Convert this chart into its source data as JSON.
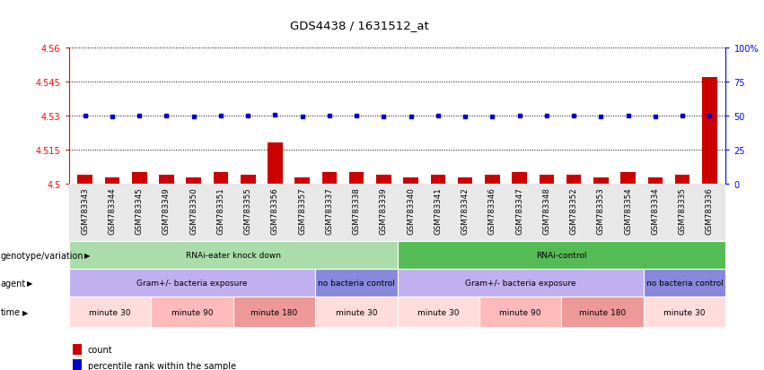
{
  "title": "GDS4438 / 1631512_at",
  "samples": [
    "GSM783343",
    "GSM783344",
    "GSM783345",
    "GSM783349",
    "GSM783350",
    "GSM783351",
    "GSM783355",
    "GSM783356",
    "GSM783357",
    "GSM783337",
    "GSM783338",
    "GSM783339",
    "GSM783340",
    "GSM783341",
    "GSM783342",
    "GSM783346",
    "GSM783347",
    "GSM783348",
    "GSM783352",
    "GSM783353",
    "GSM783354",
    "GSM783334",
    "GSM783335",
    "GSM783336"
  ],
  "bar_values": [
    4.504,
    4.503,
    4.505,
    4.504,
    4.503,
    4.505,
    4.504,
    4.518,
    4.503,
    4.505,
    4.505,
    4.504,
    4.503,
    4.504,
    4.503,
    4.504,
    4.505,
    4.504,
    4.504,
    4.503,
    4.505,
    4.503,
    4.504,
    4.547
  ],
  "percentile_values": [
    4.53,
    4.5295,
    4.53,
    4.53,
    4.5295,
    4.53,
    4.53,
    4.5305,
    4.5295,
    4.53,
    4.53,
    4.5295,
    4.5295,
    4.53,
    4.5295,
    4.5295,
    4.53,
    4.53,
    4.53,
    4.5295,
    4.53,
    4.5295,
    4.53,
    4.53
  ],
  "ymin": 4.5,
  "ymax": 4.56,
  "yticks_left": [
    4.5,
    4.515,
    4.53,
    4.545,
    4.56
  ],
  "ytick_labels_left": [
    "4.5",
    "4.515",
    "4.53",
    "4.545",
    "4.56"
  ],
  "right_yticks_pct": [
    0,
    25,
    50,
    75,
    100
  ],
  "right_ytick_labels": [
    "0",
    "25",
    "50",
    "75",
    "100%"
  ],
  "bar_color": "#cc0000",
  "dot_color": "#0000cc",
  "bar_width": 0.55,
  "chart_facecolor": "#ffffff",
  "xtick_area_color": "#e8e8e8",
  "genotype_row": {
    "label": "genotype/variation",
    "groups": [
      {
        "text": "RNAi-eater knock down",
        "start": 0,
        "end": 12,
        "color": "#aaddaa"
      },
      {
        "text": "RNAi-control",
        "start": 12,
        "end": 24,
        "color": "#55bb55"
      }
    ]
  },
  "agent_row": {
    "label": "agent",
    "groups": [
      {
        "text": "Gram+/- bacteria exposure",
        "start": 0,
        "end": 9,
        "color": "#c0b0f0"
      },
      {
        "text": "no bacteria control",
        "start": 9,
        "end": 12,
        "color": "#8888dd"
      },
      {
        "text": "Gram+/- bacteria exposure",
        "start": 12,
        "end": 21,
        "color": "#c0b0f0"
      },
      {
        "text": "no bacteria control",
        "start": 21,
        "end": 24,
        "color": "#8888dd"
      }
    ]
  },
  "time_row": {
    "label": "time",
    "groups": [
      {
        "text": "minute 30",
        "start": 0,
        "end": 3,
        "color": "#ffdddd"
      },
      {
        "text": "minute 90",
        "start": 3,
        "end": 6,
        "color": "#ffbbbb"
      },
      {
        "text": "minute 180",
        "start": 6,
        "end": 9,
        "color": "#ee9999"
      },
      {
        "text": "minute 30",
        "start": 9,
        "end": 12,
        "color": "#ffdddd"
      },
      {
        "text": "minute 30",
        "start": 12,
        "end": 15,
        "color": "#ffdddd"
      },
      {
        "text": "minute 90",
        "start": 15,
        "end": 18,
        "color": "#ffbbbb"
      },
      {
        "text": "minute 180",
        "start": 18,
        "end": 21,
        "color": "#ee9999"
      },
      {
        "text": "minute 30",
        "start": 21,
        "end": 24,
        "color": "#ffdddd"
      }
    ]
  },
  "legend_items": [
    {
      "color": "#cc0000",
      "label": "count"
    },
    {
      "color": "#0000cc",
      "label": "percentile rank within the sample"
    }
  ]
}
